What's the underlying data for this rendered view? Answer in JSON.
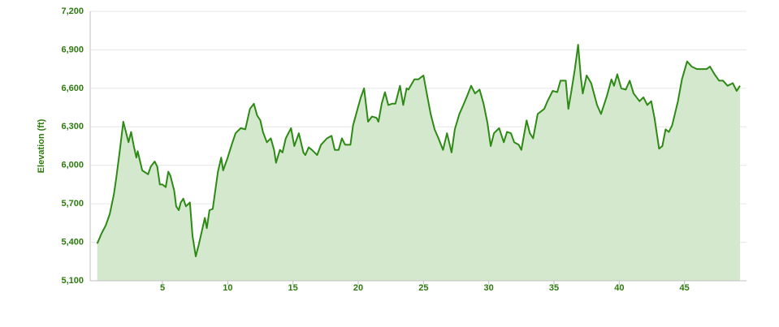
{
  "chart_data": {
    "type": "area",
    "y_label": "Elevation (ft)",
    "x": [
      0,
      0.34,
      0.65,
      0.96,
      1.27,
      1.46,
      1.7,
      2.0,
      2.2,
      2.4,
      2.6,
      2.8,
      3.0,
      3.1,
      3.45,
      3.9,
      4.1,
      4.4,
      4.6,
      4.8,
      5.0,
      5.25,
      5.45,
      5.6,
      5.9,
      6.05,
      6.25,
      6.4,
      6.6,
      6.8,
      7.1,
      7.3,
      7.55,
      7.8,
      8.25,
      8.4,
      8.6,
      8.85,
      9.0,
      9.25,
      9.5,
      9.65,
      10.0,
      10.3,
      10.6,
      11.0,
      11.35,
      11.7,
      12.0,
      12.25,
      12.5,
      12.7,
      13.0,
      13.3,
      13.55,
      13.7,
      14.0,
      14.2,
      14.45,
      14.85,
      15.1,
      15.45,
      15.8,
      15.95,
      16.2,
      16.45,
      16.85,
      17.15,
      17.6,
      17.95,
      18.2,
      18.5,
      18.75,
      19.0,
      19.4,
      19.6,
      19.95,
      20.2,
      20.45,
      20.75,
      21.05,
      21.4,
      21.55,
      21.8,
      22.05,
      22.3,
      22.6,
      22.85,
      23.2,
      23.45,
      23.7,
      23.85,
      24.3,
      24.6,
      25.0,
      25.25,
      25.55,
      25.85,
      26.15,
      26.5,
      26.8,
      27.15,
      27.4,
      27.75,
      28.05,
      28.3,
      28.65,
      28.95,
      29.3,
      29.6,
      29.9,
      30.15,
      30.4,
      30.8,
      31.15,
      31.4,
      31.7,
      31.95,
      32.3,
      32.5,
      32.9,
      33.15,
      33.4,
      33.75,
      34.25,
      34.5,
      34.9,
      35.25,
      35.5,
      35.9,
      36.1,
      36.35,
      36.6,
      36.85,
      37.05,
      37.2,
      37.5,
      37.85,
      38.3,
      38.6,
      39.05,
      39.4,
      39.6,
      39.85,
      40.15,
      40.5,
      40.8,
      41.1,
      41.55,
      41.85,
      42.15,
      42.45,
      42.7,
      43.05,
      43.3,
      43.55,
      43.8,
      44.05,
      44.5,
      44.8,
      45.2,
      45.55,
      45.95,
      46.3,
      46.7,
      46.95,
      47.3,
      47.65,
      47.95,
      48.3,
      48.7,
      49.0,
      49.25
    ],
    "values": [
      5390,
      5470,
      5530,
      5620,
      5770,
      5900,
      6090,
      6340,
      6260,
      6180,
      6260,
      6150,
      6060,
      6110,
      5960,
      5930,
      5990,
      6030,
      5990,
      5850,
      5850,
      5830,
      5950,
      5920,
      5800,
      5680,
      5650,
      5710,
      5740,
      5680,
      5710,
      5450,
      5290,
      5390,
      5590,
      5510,
      5650,
      5660,
      5770,
      5950,
      6060,
      5960,
      6060,
      6160,
      6250,
      6290,
      6280,
      6440,
      6480,
      6390,
      6350,
      6260,
      6180,
      6210,
      6120,
      6020,
      6120,
      6100,
      6210,
      6290,
      6150,
      6250,
      6100,
      6080,
      6140,
      6120,
      6080,
      6160,
      6210,
      6230,
      6120,
      6120,
      6210,
      6160,
      6160,
      6310,
      6440,
      6530,
      6600,
      6340,
      6380,
      6370,
      6340,
      6480,
      6570,
      6470,
      6480,
      6480,
      6620,
      6470,
      6600,
      6590,
      6670,
      6670,
      6700,
      6560,
      6400,
      6280,
      6210,
      6120,
      6250,
      6100,
      6280,
      6400,
      6470,
      6530,
      6620,
      6560,
      6590,
      6480,
      6330,
      6150,
      6250,
      6290,
      6180,
      6260,
      6250,
      6180,
      6160,
      6120,
      6350,
      6250,
      6210,
      6400,
      6440,
      6500,
      6580,
      6570,
      6660,
      6660,
      6440,
      6590,
      6750,
      6940,
      6690,
      6560,
      6700,
      6640,
      6470,
      6400,
      6540,
      6670,
      6620,
      6710,
      6600,
      6590,
      6660,
      6560,
      6500,
      6530,
      6470,
      6500,
      6370,
      6130,
      6150,
      6280,
      6260,
      6310,
      6500,
      6670,
      6810,
      6770,
      6750,
      6750,
      6750,
      6770,
      6710,
      6660,
      6660,
      6620,
      6640,
      6580,
      6620
    ],
    "line_color": "#2d8a14",
    "fill_color": "#d3e8cc",
    "xlim": [
      -0.54,
      49.75
    ],
    "xticks": [
      5,
      10,
      15,
      20,
      25,
      30,
      35,
      40,
      45
    ],
    "ylim": [
      5100,
      7200
    ],
    "yticks": [
      {
        "value": 5100,
        "label": "5,100"
      },
      {
        "value": 5400,
        "label": "5,400"
      },
      {
        "value": 5700,
        "label": "5,700"
      },
      {
        "value": 6000,
        "label": "6,000"
      },
      {
        "value": 6300,
        "label": "6,300"
      },
      {
        "value": 6600,
        "label": "6,600"
      },
      {
        "value": 6900,
        "label": "6,900"
      },
      {
        "value": 7200,
        "label": "7,200"
      }
    ],
    "grid": true
  }
}
